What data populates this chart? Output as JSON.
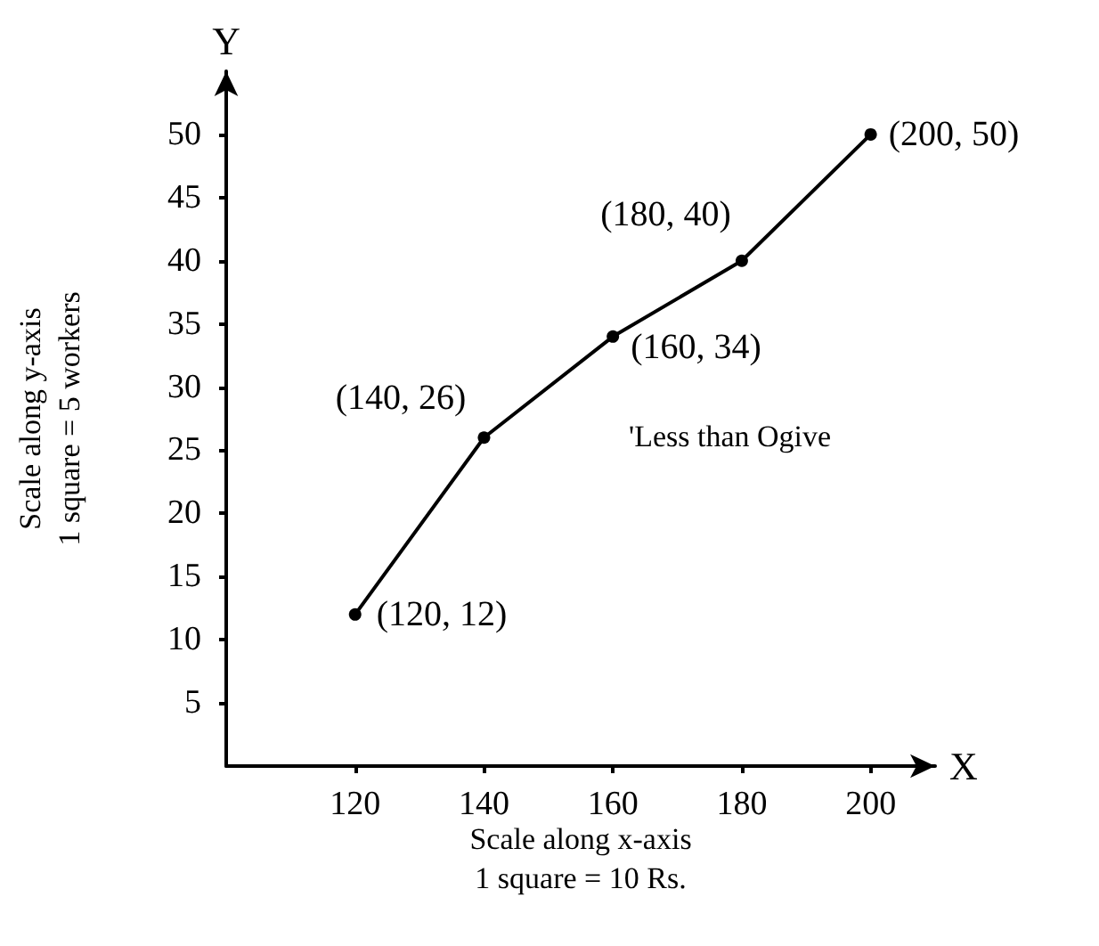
{
  "chart_data": {
    "type": "line",
    "xlabel": "X",
    "ylabel": "Y",
    "x": [
      120,
      140,
      160,
      180,
      200
    ],
    "series": [
      {
        "color": "#000000",
        "values": [
          12,
          26,
          34,
          40,
          50
        ]
      }
    ],
    "xlim": [
      100,
      210
    ],
    "ylim": [
      0,
      55
    ],
    "xticks": [
      120,
      140,
      160,
      180,
      200
    ],
    "yticks": [
      5,
      10,
      15,
      20,
      25,
      30,
      35,
      40,
      45,
      50
    ],
    "grid": false,
    "marker": "circle",
    "line_style": "solid",
    "annotations": [
      {
        "text": "(120, 12)",
        "x": 120,
        "y": 12
      },
      {
        "text": "(140, 26)",
        "x": 140,
        "y": 26
      },
      {
        "text": "(160, 34)",
        "x": 160,
        "y": 34
      },
      {
        "text": "(180, 40)",
        "x": 180,
        "y": 40
      },
      {
        "text": "(200, 50)",
        "x": 200,
        "y": 50
      },
      "'Less than Ogive",
      "Scale along x-axis\n1 square = 10 Rs.",
      "Scale along y-axis\n1 square = 5 workers"
    ]
  }
}
